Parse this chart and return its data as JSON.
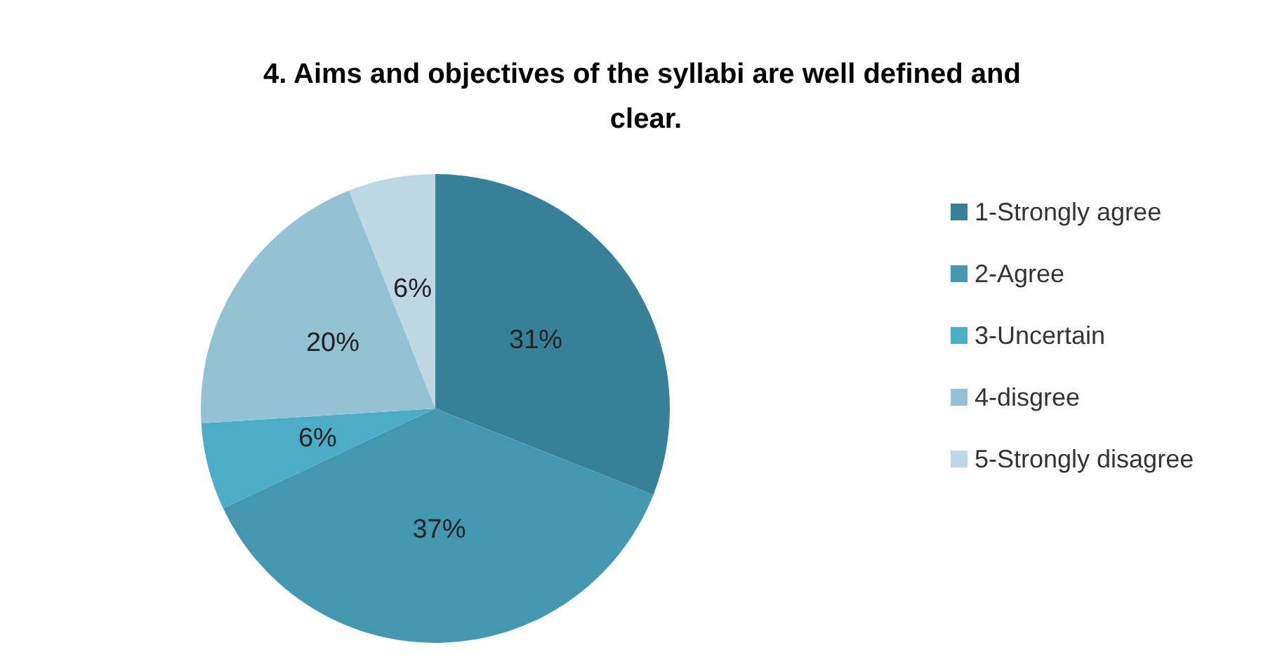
{
  "chart_data": {
    "type": "pie",
    "title": "4. Aims and objectives of the syllabi are well defined and clear.",
    "categories": [
      "1-Strongly agree",
      "2-Agree",
      "3-Uncertain",
      "4-disgree",
      "5-Strongly disagree"
    ],
    "values": [
      31,
      37,
      6,
      20,
      6
    ],
    "colors": [
      "#37809a",
      "#4397ae",
      "#4badc6",
      "#93c2d4",
      "#bdd8e3"
    ],
    "value_labels": [
      "31%",
      "37%",
      "6%",
      "20%",
      "6%"
    ],
    "legend": "right"
  }
}
